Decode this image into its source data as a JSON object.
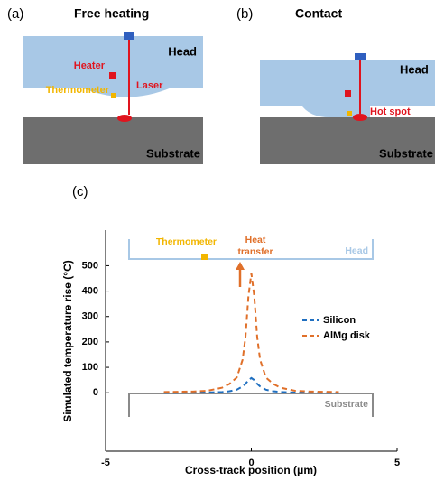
{
  "panels": [
    {
      "label": "(a)",
      "title": "Free heating",
      "labels": {
        "head": "Head",
        "heater": "Heater",
        "laser": "Laser",
        "thermometer": "Thermometer",
        "substrate": "Substrate"
      }
    },
    {
      "label": "(b)",
      "title": "Contact",
      "labels": {
        "head": "Head",
        "hot_spot": "Hot spot",
        "substrate": "Substrate"
      }
    }
  ],
  "chart_data": {
    "type": "line",
    "panel_label": "(c)",
    "xlabel": "Cross-track position (μm)",
    "ylabel": "Simulated temperature rise (°C)",
    "x": [
      -3,
      -2.5,
      -2,
      -1.5,
      -1,
      -0.75,
      -0.5,
      -0.3,
      -0.2,
      -0.1,
      0,
      0.1,
      0.2,
      0.3,
      0.5,
      0.75,
      1,
      1.5,
      2,
      2.5,
      3
    ],
    "series": [
      {
        "name": "Silicon",
        "color": "#1f6fc0",
        "values": [
          0,
          0,
          1,
          1,
          3,
          6,
          12,
          25,
          35,
          50,
          58,
          50,
          35,
          25,
          12,
          6,
          3,
          1,
          1,
          0,
          0
        ]
      },
      {
        "name": "AlMg disk",
        "color": "#e0702a",
        "values": [
          3,
          4,
          5,
          8,
          20,
          35,
          60,
          130,
          220,
          380,
          470,
          380,
          220,
          130,
          60,
          35,
          20,
          8,
          5,
          4,
          3
        ]
      }
    ],
    "xlim": [
      -5,
      5
    ],
    "xticks": [
      -5,
      0,
      5
    ],
    "ylim": [
      -230,
      640
    ],
    "yticks": [
      0,
      100,
      200,
      300,
      400,
      500
    ],
    "legend": "right",
    "annotations": {
      "thermometer": "Thermometer",
      "heat_transfer": [
        "Heat",
        "transfer"
      ],
      "head": "Head",
      "substrate": "Substrate"
    }
  }
}
